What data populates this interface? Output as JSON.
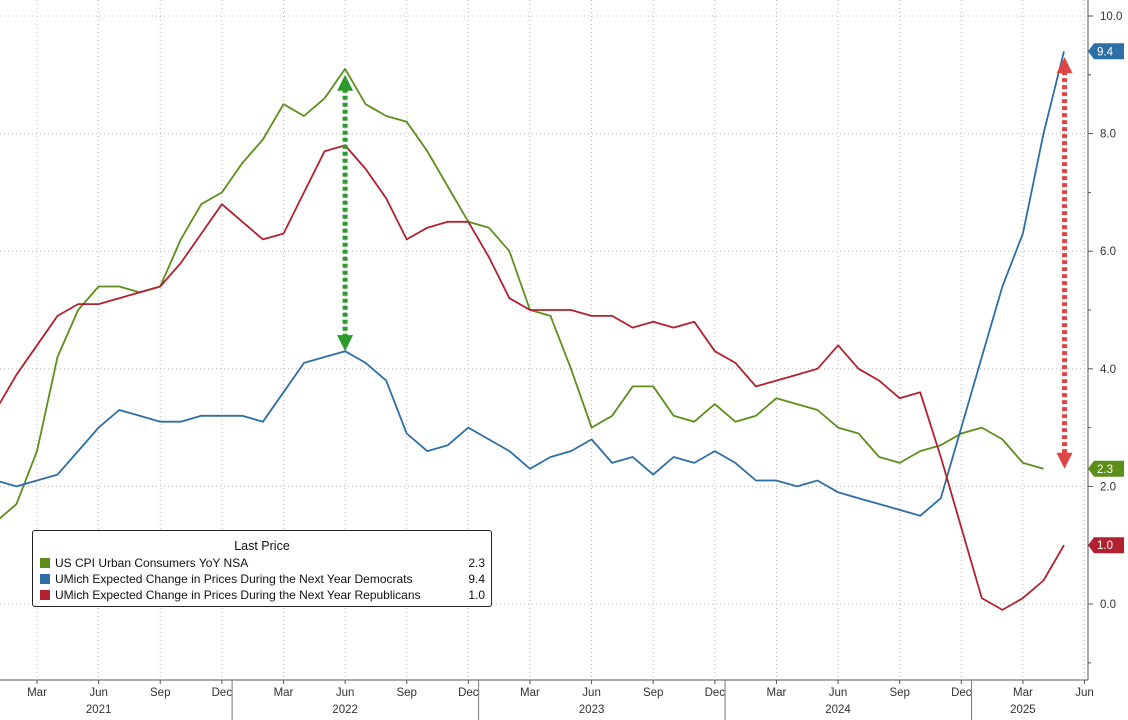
{
  "chart_data": {
    "type": "line",
    "legend": {
      "title": "Last Price",
      "placement": "bottom-left",
      "entries": [
        {
          "label": "US CPI Urban Consumers YoY NSA",
          "value": "2.3",
          "color": "#5b8f1a"
        },
        {
          "label": "UMich Expected Change in Prices During the Next Year Democrats",
          "value": "9.4",
          "color": "#2e6ea6"
        },
        {
          "label": "UMich Expected Change in Prices During the Next Year Republicans",
          "value": "1.0",
          "color": "#b3202f"
        }
      ]
    },
    "y_axis": {
      "side": "right",
      "range": [
        -1.0,
        10.0
      ],
      "ticks": [
        "10.0",
        "8.0",
        "6.0",
        "4.0",
        "2.0",
        "0.0"
      ],
      "grid": true
    },
    "x_axis": {
      "range": [
        "2021-01",
        "2025-06"
      ],
      "month_ticks": [
        {
          "label": "Mar",
          "month": "2021-03"
        },
        {
          "label": "Jun",
          "month": "2021-06"
        },
        {
          "label": "Sep",
          "month": "2021-09"
        },
        {
          "label": "Dec",
          "month": "2021-12"
        },
        {
          "label": "Mar",
          "month": "2022-03"
        },
        {
          "label": "Jun",
          "month": "2022-06"
        },
        {
          "label": "Sep",
          "month": "2022-09"
        },
        {
          "label": "Dec",
          "month": "2022-12"
        },
        {
          "label": "Mar",
          "month": "2023-03"
        },
        {
          "label": "Jun",
          "month": "2023-06"
        },
        {
          "label": "Sep",
          "month": "2023-09"
        },
        {
          "label": "Dec",
          "month": "2023-12"
        },
        {
          "label": "Mar",
          "month": "2024-03"
        },
        {
          "label": "Jun",
          "month": "2024-06"
        },
        {
          "label": "Sep",
          "month": "2024-09"
        },
        {
          "label": "Dec",
          "month": "2024-12"
        },
        {
          "label": "Mar",
          "month": "2025-03"
        },
        {
          "label": "Jun",
          "month": "2025-06"
        }
      ],
      "year_labels": [
        {
          "label": "2021",
          "month": "2021-06"
        },
        {
          "label": "2022",
          "month": "2022-06"
        },
        {
          "label": "2023",
          "month": "2023-06"
        },
        {
          "label": "2024",
          "month": "2024-06"
        },
        {
          "label": "2025",
          "month": "2025-03"
        }
      ],
      "year_dividers": [
        "2022-01",
        "2023-01",
        "2024-01",
        "2025-01"
      ],
      "grid": true
    },
    "series": [
      {
        "name": "US CPI Urban Consumers YoY NSA",
        "color": "#5b8f1a",
        "last_label": "2.3",
        "x": [
          "2021-01",
          "2021-02",
          "2021-03",
          "2021-04",
          "2021-05",
          "2021-06",
          "2021-07",
          "2021-08",
          "2021-09",
          "2021-10",
          "2021-11",
          "2021-12",
          "2022-01",
          "2022-02",
          "2022-03",
          "2022-04",
          "2022-05",
          "2022-06",
          "2022-07",
          "2022-08",
          "2022-09",
          "2022-10",
          "2022-11",
          "2022-12",
          "2023-01",
          "2023-02",
          "2023-03",
          "2023-04",
          "2023-05",
          "2023-06",
          "2023-07",
          "2023-08",
          "2023-09",
          "2023-10",
          "2023-11",
          "2023-12",
          "2024-01",
          "2024-02",
          "2024-03",
          "2024-04",
          "2024-05",
          "2024-06",
          "2024-07",
          "2024-08",
          "2024-09",
          "2024-10",
          "2024-11",
          "2024-12",
          "2025-01",
          "2025-02",
          "2025-03",
          "2025-04"
        ],
        "y": [
          1.4,
          1.7,
          2.6,
          4.2,
          5.0,
          5.4,
          5.4,
          5.3,
          5.4,
          6.2,
          6.8,
          7.0,
          7.5,
          7.9,
          8.5,
          8.3,
          8.6,
          9.1,
          8.5,
          8.3,
          8.2,
          7.7,
          7.1,
          6.5,
          6.4,
          6.0,
          5.0,
          4.9,
          4.0,
          3.0,
          3.2,
          3.7,
          3.7,
          3.2,
          3.1,
          3.4,
          3.1,
          3.2,
          3.5,
          3.4,
          3.3,
          3.0,
          2.9,
          2.5,
          2.4,
          2.6,
          2.7,
          2.9,
          3.0,
          2.8,
          2.4,
          2.3
        ]
      },
      {
        "name": "UMich Expected Change in Prices During the Next Year Democrats",
        "color": "#2e6ea6",
        "last_label": "9.4",
        "x": [
          "2021-01",
          "2021-02",
          "2021-03",
          "2021-04",
          "2021-05",
          "2021-06",
          "2021-07",
          "2021-08",
          "2021-09",
          "2021-10",
          "2021-11",
          "2021-12",
          "2022-01",
          "2022-02",
          "2022-03",
          "2022-04",
          "2022-05",
          "2022-06",
          "2022-07",
          "2022-08",
          "2022-09",
          "2022-10",
          "2022-11",
          "2022-12",
          "2023-01",
          "2023-02",
          "2023-03",
          "2023-04",
          "2023-05",
          "2023-06",
          "2023-07",
          "2023-08",
          "2023-09",
          "2023-10",
          "2023-11",
          "2023-12",
          "2024-01",
          "2024-02",
          "2024-03",
          "2024-04",
          "2024-05",
          "2024-06",
          "2024-07",
          "2024-08",
          "2024-09",
          "2024-10",
          "2024-11",
          "2024-12",
          "2025-01",
          "2025-02",
          "2025-03",
          "2025-04",
          "2025-05"
        ],
        "y": [
          2.1,
          2.0,
          2.1,
          2.2,
          2.6,
          3.0,
          3.3,
          3.2,
          3.1,
          3.1,
          3.2,
          3.2,
          3.2,
          3.1,
          3.6,
          4.1,
          4.2,
          4.3,
          4.1,
          3.8,
          2.9,
          2.6,
          2.7,
          3.0,
          2.8,
          2.6,
          2.3,
          2.5,
          2.6,
          2.8,
          2.4,
          2.5,
          2.2,
          2.5,
          2.4,
          2.6,
          2.4,
          2.1,
          2.1,
          2.0,
          2.1,
          1.9,
          1.8,
          1.7,
          1.6,
          1.5,
          1.8,
          3.0,
          4.2,
          5.4,
          6.3,
          8.0,
          9.4
        ]
      },
      {
        "name": "UMich Expected Change in Prices During the Next Year Republicans",
        "color": "#b3202f",
        "last_label": "1.0",
        "x": [
          "2021-01",
          "2021-02",
          "2021-03",
          "2021-04",
          "2021-05",
          "2021-06",
          "2021-07",
          "2021-08",
          "2021-09",
          "2021-10",
          "2021-11",
          "2021-12",
          "2022-01",
          "2022-02",
          "2022-03",
          "2022-04",
          "2022-05",
          "2022-06",
          "2022-07",
          "2022-08",
          "2022-09",
          "2022-10",
          "2022-11",
          "2022-12",
          "2023-01",
          "2023-02",
          "2023-03",
          "2023-04",
          "2023-05",
          "2023-06",
          "2023-07",
          "2023-08",
          "2023-09",
          "2023-10",
          "2023-11",
          "2023-12",
          "2024-01",
          "2024-02",
          "2024-03",
          "2024-04",
          "2024-05",
          "2024-06",
          "2024-07",
          "2024-08",
          "2024-09",
          "2024-10",
          "2024-11",
          "2024-12",
          "2025-01",
          "2025-02",
          "2025-03",
          "2025-04",
          "2025-05"
        ],
        "y": [
          3.3,
          3.9,
          4.4,
          4.9,
          5.1,
          5.1,
          5.2,
          5.3,
          5.4,
          5.8,
          6.3,
          6.8,
          6.5,
          6.2,
          6.3,
          7.0,
          7.7,
          7.8,
          7.4,
          6.9,
          6.2,
          6.4,
          6.5,
          6.5,
          5.9,
          5.2,
          5.0,
          5.0,
          5.0,
          4.9,
          4.9,
          4.7,
          4.8,
          4.7,
          4.8,
          4.3,
          4.1,
          3.7,
          3.8,
          3.9,
          4.0,
          4.4,
          4.0,
          3.8,
          3.5,
          3.6,
          2.5,
          1.3,
          0.1,
          -0.1,
          0.1,
          0.4,
          1.0
        ]
      }
    ],
    "annotations": [
      {
        "type": "double-arrow",
        "style": "dotted",
        "color": "#2b9a2b",
        "x": "2022-06",
        "y_from": 4.3,
        "y_to": 9.0
      },
      {
        "type": "double-arrow",
        "style": "dotted",
        "color": "#e04545",
        "x": "2025-06",
        "y_from": 2.3,
        "y_to": 9.3
      }
    ]
  }
}
